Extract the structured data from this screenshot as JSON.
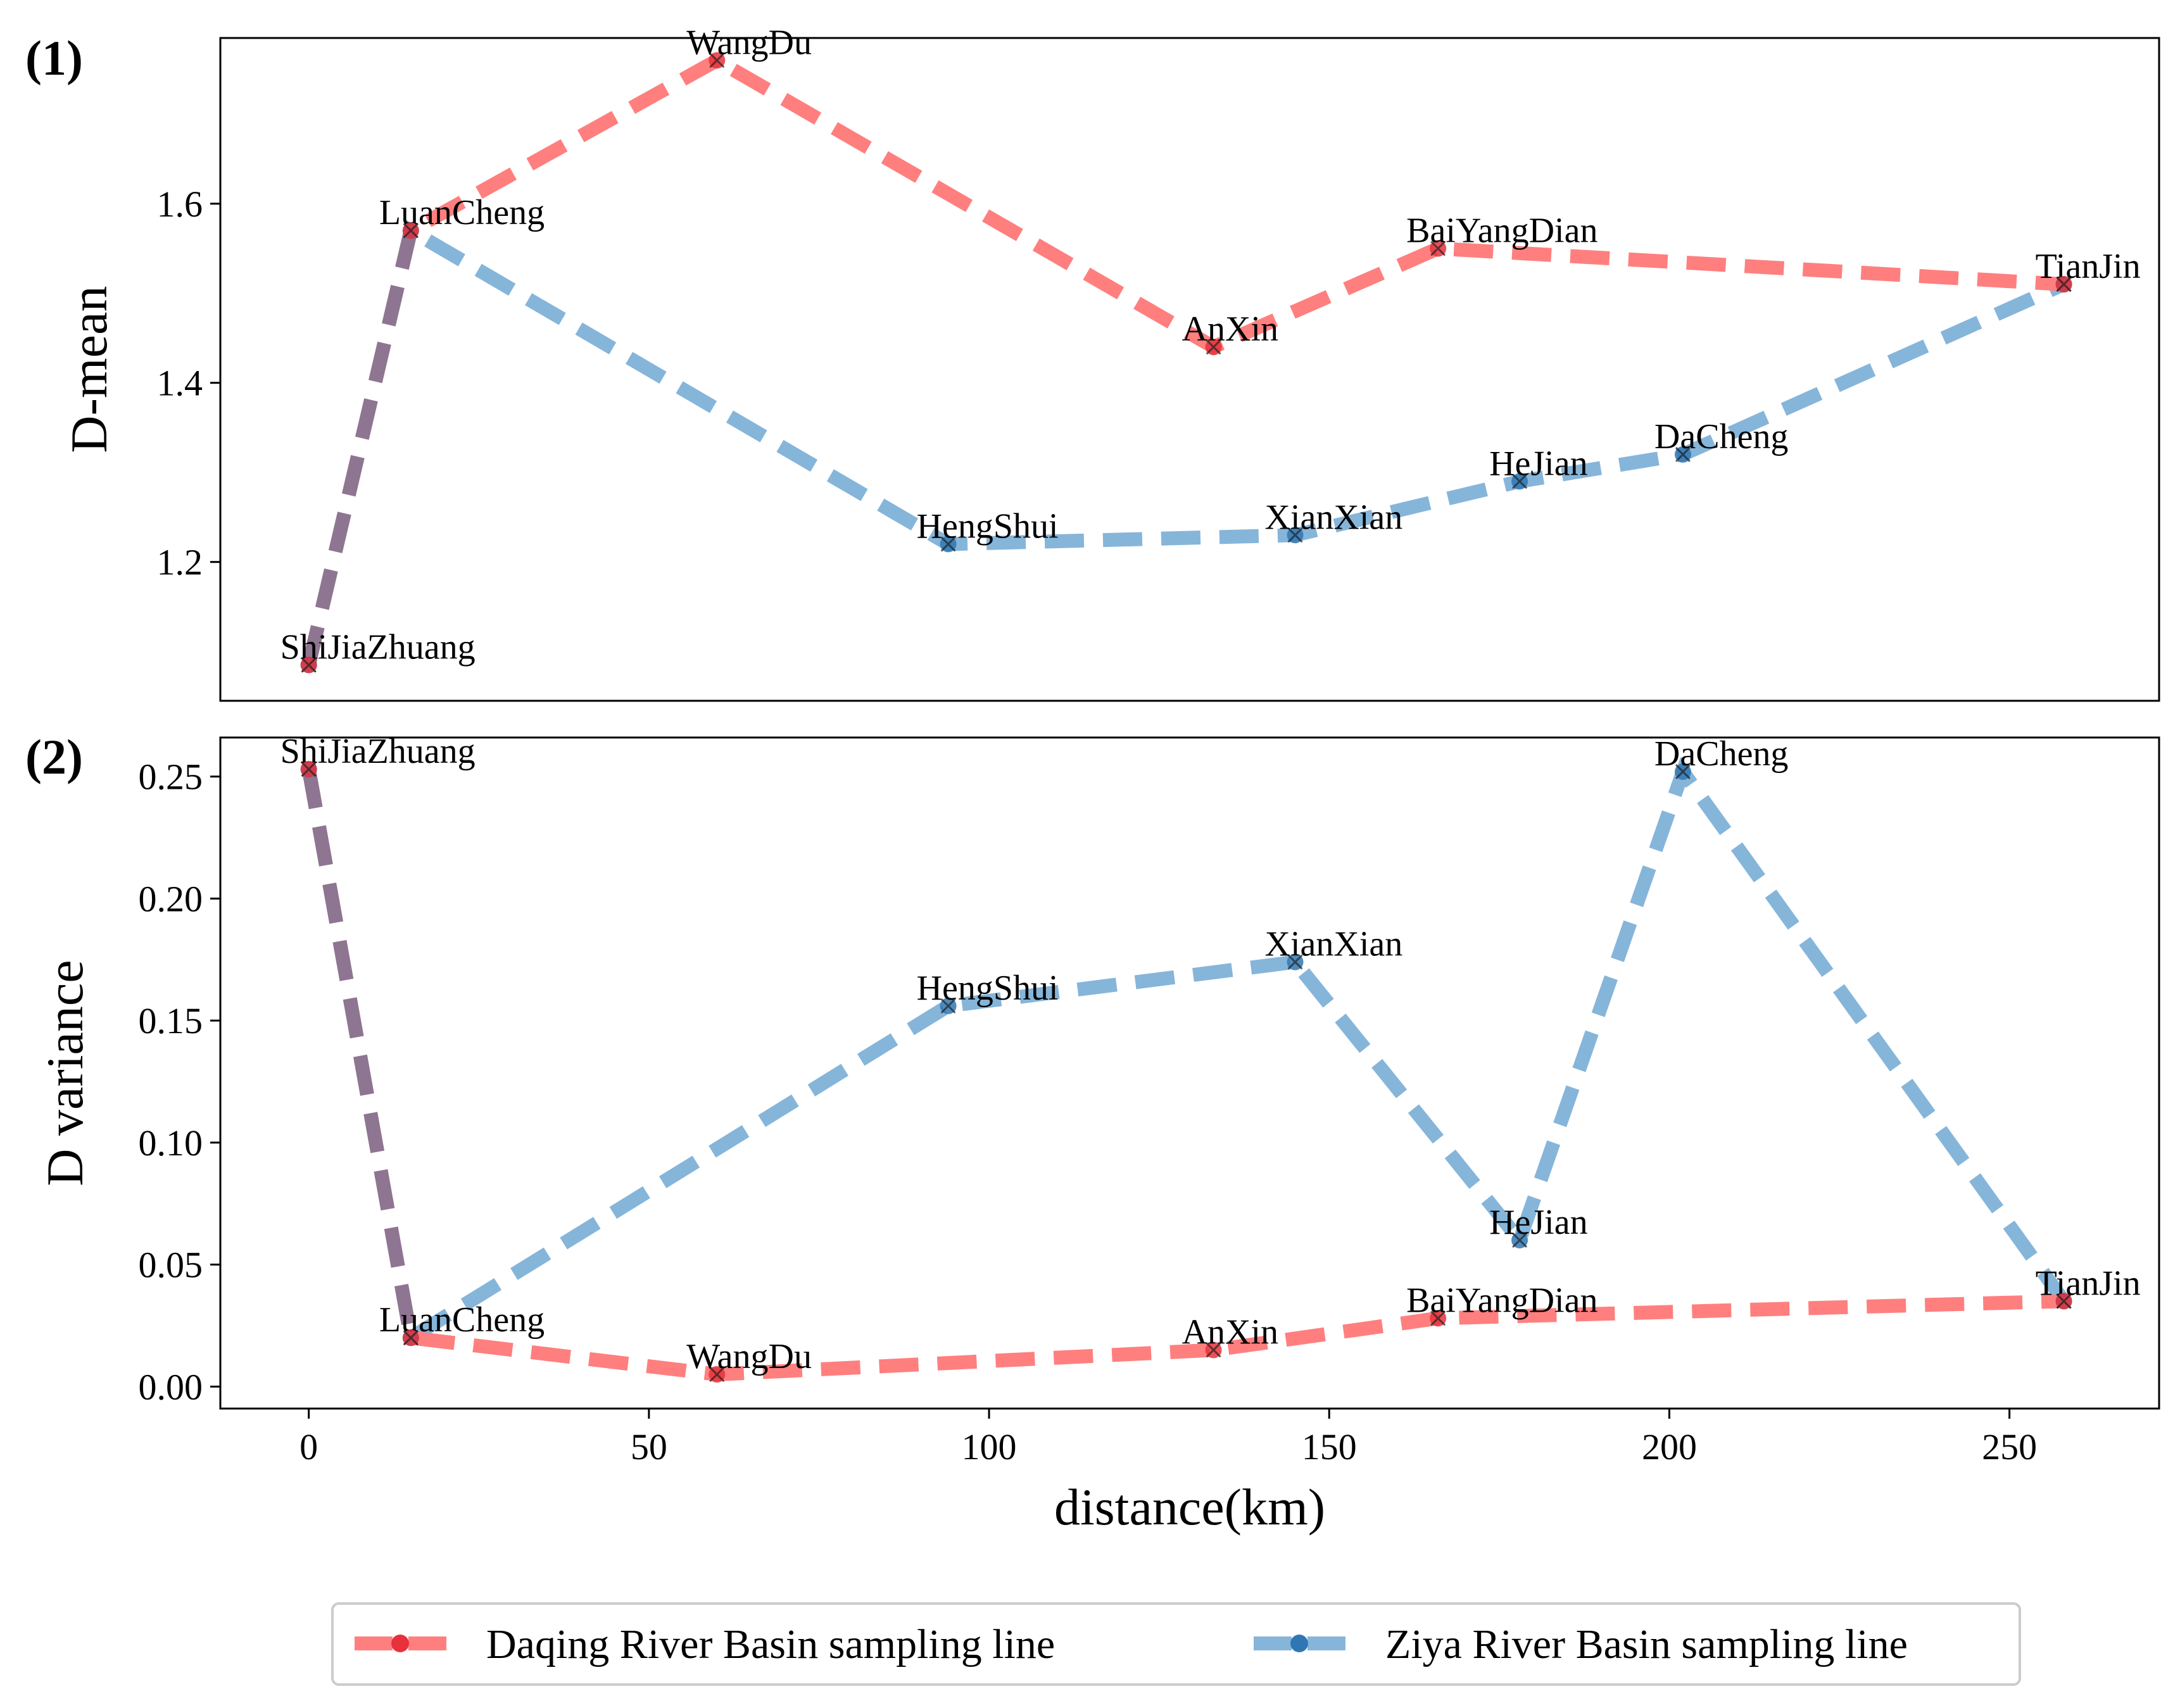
{
  "colors": {
    "daqing": "#ff7f7f",
    "ziya": "#86b5da",
    "overlap": "#8e7592",
    "marker_d": "#e8313b",
    "marker_z": "#2f77b3"
  },
  "legend": [
    {
      "key": "daqing",
      "label": "Daqing River Basin sampling line"
    },
    {
      "key": "ziya",
      "label": "Ziya River Basin sampling line"
    }
  ],
  "chart_data": [
    {
      "panel": "(1)",
      "type": "line",
      "title": "",
      "xlabel": "",
      "ylabel": "D-mean",
      "xlim": [
        -13,
        272
      ],
      "ylim": [
        1.045,
        1.785
      ],
      "yticks": [
        1.2,
        1.4,
        1.6
      ],
      "ytick_labels": [
        "1.2",
        "1.4",
        "1.6"
      ],
      "series": [
        {
          "name": "Daqing River Basin sampling line",
          "points": [
            {
              "name": "ShiJiaZhuang",
              "x": 0,
              "y": 1.085
            },
            {
              "name": "LuanCheng",
              "x": 15,
              "y": 1.57
            },
            {
              "name": "WangDu",
              "x": 60,
              "y": 1.76
            },
            {
              "name": "AnXin",
              "x": 133,
              "y": 1.44
            },
            {
              "name": "BaiYangDian",
              "x": 166,
              "y": 1.55
            },
            {
              "name": "TianJin",
              "x": 258,
              "y": 1.51
            }
          ]
        },
        {
          "name": "Ziya River Basin sampling line",
          "points": [
            {
              "name": "ShiJiaZhuang",
              "x": 0,
              "y": 1.085
            },
            {
              "name": "LuanCheng",
              "x": 15,
              "y": 1.57
            },
            {
              "name": "HengShui",
              "x": 94,
              "y": 1.22
            },
            {
              "name": "XianXian",
              "x": 145,
              "y": 1.23
            },
            {
              "name": "HeJian",
              "x": 178,
              "y": 1.29
            },
            {
              "name": "DaCheng",
              "x": 202,
              "y": 1.32
            },
            {
              "name": "TianJin",
              "x": 258,
              "y": 1.51
            }
          ]
        }
      ]
    },
    {
      "panel": "(2)",
      "type": "line",
      "title": "",
      "xlabel": "distance(km)",
      "ylabel": "D variance",
      "xlim": [
        -13,
        272
      ],
      "ylim": [
        -0.009,
        0.266
      ],
      "yticks": [
        0.0,
        0.05,
        0.1,
        0.15,
        0.2,
        0.25
      ],
      "ytick_labels": [
        "0.00",
        "0.05",
        "0.10",
        "0.15",
        "0.20",
        "0.25"
      ],
      "xticks": [
        0,
        50,
        100,
        150,
        200,
        250
      ],
      "xtick_labels": [
        "0",
        "50",
        "100",
        "150",
        "200",
        "250"
      ],
      "series": [
        {
          "name": "Daqing River Basin sampling line",
          "points": [
            {
              "name": "ShiJiaZhuang",
              "x": 0,
              "y": 0.253
            },
            {
              "name": "LuanCheng",
              "x": 15,
              "y": 0.02
            },
            {
              "name": "WangDu",
              "x": 60,
              "y": 0.005
            },
            {
              "name": "AnXin",
              "x": 133,
              "y": 0.015
            },
            {
              "name": "BaiYangDian",
              "x": 166,
              "y": 0.028
            },
            {
              "name": "TianJin",
              "x": 258,
              "y": 0.035
            }
          ]
        },
        {
          "name": "Ziya River Basin sampling line",
          "points": [
            {
              "name": "ShiJiaZhuang",
              "x": 0,
              "y": 0.253
            },
            {
              "name": "LuanCheng",
              "x": 15,
              "y": 0.02
            },
            {
              "name": "HengShui",
              "x": 94,
              "y": 0.156
            },
            {
              "name": "XianXian",
              "x": 145,
              "y": 0.174
            },
            {
              "name": "HeJian",
              "x": 178,
              "y": 0.06
            },
            {
              "name": "DaCheng",
              "x": 202,
              "y": 0.252
            },
            {
              "name": "TianJin",
              "x": 258,
              "y": 0.035
            }
          ]
        }
      ]
    }
  ]
}
